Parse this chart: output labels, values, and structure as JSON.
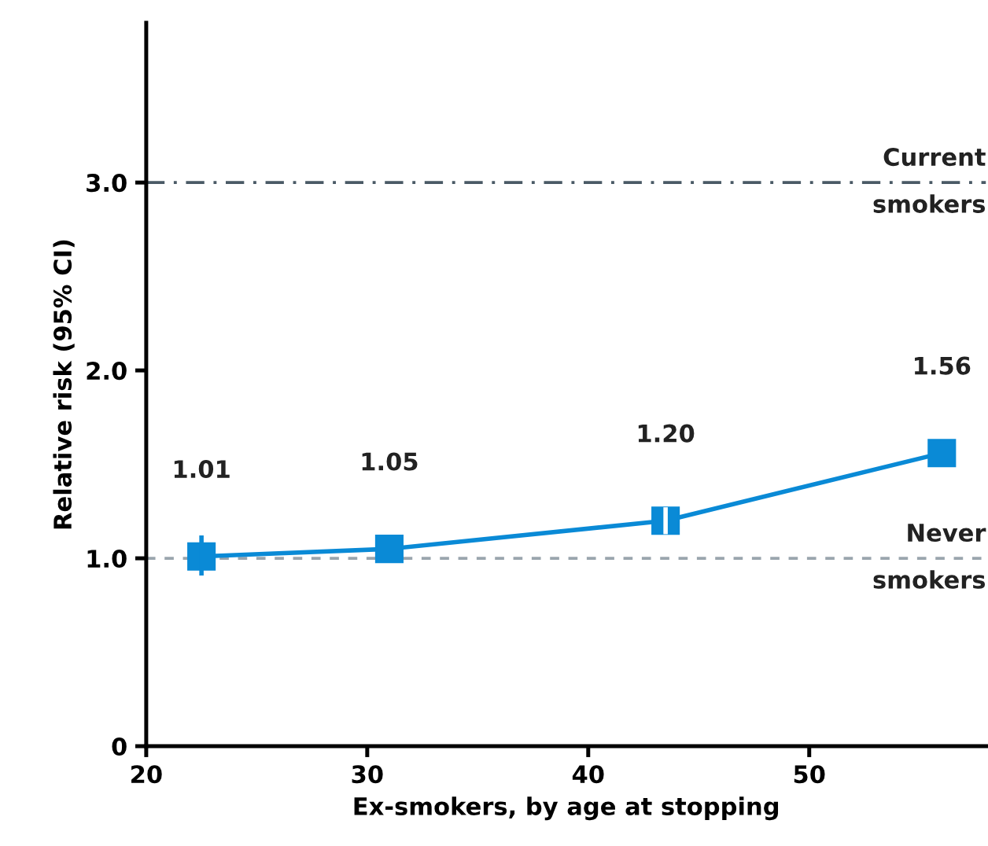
{
  "chart_data": {
    "type": "line",
    "xlabel": "Ex-smokers, by age at stopping",
    "ylabel": "Relative risk (95% CI)",
    "x": [
      22.5,
      31,
      43.5,
      56
    ],
    "series": [
      {
        "color": "#0a8ad6",
        "values": [
          1.01,
          1.05,
          1.2,
          1.56
        ],
        "errors": [
          [
            0.92,
            1.11
          ],
          null,
          [
            1.14,
            1.26
          ],
          null
        ],
        "value_labels": [
          "1.01",
          "1.05",
          "1.20",
          "1.56"
        ]
      }
    ],
    "marker": "square",
    "line_style": "solid",
    "grid": false,
    "legend": false,
    "xlim": [
      20,
      58
    ],
    "xticks": [
      20,
      30,
      40,
      50
    ],
    "ylim": [
      0,
      3.85
    ],
    "yticks": [
      0,
      {
        "value": 1,
        "label": "1.0"
      },
      {
        "value": 2,
        "label": "2.0"
      },
      {
        "value": 3,
        "label": "3.0"
      }
    ],
    "ref_lines": [
      {
        "axis": "y",
        "value": 3,
        "label": "Current\nsmokers",
        "color": "#4a5a66",
        "line_style": "dashdot"
      },
      {
        "axis": "y",
        "value": 1,
        "label": "Never\nsmokers",
        "color": "#9aa5ad",
        "line_style": "dashed"
      }
    ]
  }
}
